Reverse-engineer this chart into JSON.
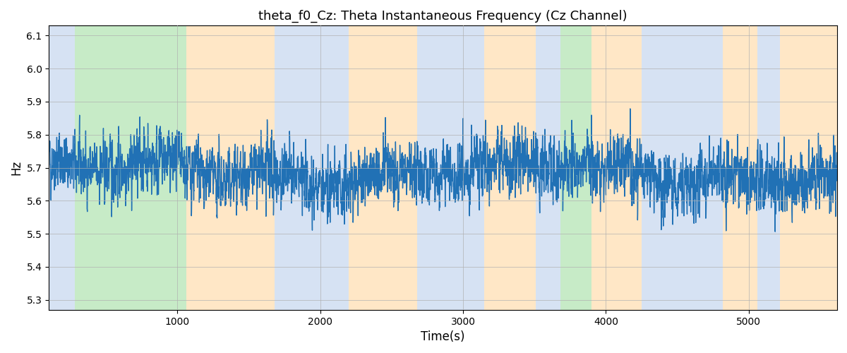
{
  "title": "theta_f0_Cz: Theta Instantaneous Frequency (Cz Channel)",
  "xlabel": "Time(s)",
  "ylabel": "Hz",
  "ylim": [
    5.27,
    6.13
  ],
  "xlim": [
    100,
    5620
  ],
  "yticks": [
    5.3,
    5.4,
    5.5,
    5.6,
    5.7,
    5.8,
    5.9,
    6.0,
    6.1
  ],
  "xticks": [
    1000,
    2000,
    3000,
    4000,
    5000
  ],
  "line_color": "#2171b5",
  "line_width": 1.0,
  "bg_color": "#ffffff",
  "grid_color": "#b0b0b0",
  "bands": [
    {
      "xmin": 100,
      "xmax": 280,
      "color": "#aec6e8",
      "alpha": 0.5
    },
    {
      "xmin": 280,
      "xmax": 1060,
      "color": "#90d890",
      "alpha": 0.5
    },
    {
      "xmin": 1060,
      "xmax": 1680,
      "color": "#ffd8a0",
      "alpha": 0.6
    },
    {
      "xmin": 1680,
      "xmax": 2200,
      "color": "#aec6e8",
      "alpha": 0.5
    },
    {
      "xmin": 2200,
      "xmax": 2680,
      "color": "#ffd8a0",
      "alpha": 0.6
    },
    {
      "xmin": 2680,
      "xmax": 3150,
      "color": "#aec6e8",
      "alpha": 0.5
    },
    {
      "xmin": 3150,
      "xmax": 3510,
      "color": "#ffd8a0",
      "alpha": 0.6
    },
    {
      "xmin": 3510,
      "xmax": 3680,
      "color": "#aec6e8",
      "alpha": 0.5
    },
    {
      "xmin": 3680,
      "xmax": 3900,
      "color": "#90d890",
      "alpha": 0.5
    },
    {
      "xmin": 3900,
      "xmax": 4250,
      "color": "#ffd8a0",
      "alpha": 0.6
    },
    {
      "xmin": 4250,
      "xmax": 4820,
      "color": "#aec6e8",
      "alpha": 0.5
    },
    {
      "xmin": 4820,
      "xmax": 5060,
      "color": "#ffd8a0",
      "alpha": 0.6
    },
    {
      "xmin": 5060,
      "xmax": 5220,
      "color": "#aec6e8",
      "alpha": 0.5
    },
    {
      "xmin": 5220,
      "xmax": 5620,
      "color": "#ffd8a0",
      "alpha": 0.6
    }
  ],
  "seed": 42,
  "n_points": 5400,
  "base_freq": 5.685,
  "noise_amp": 0.085,
  "figsize": [
    12.0,
    5.0
  ],
  "dpi": 100
}
